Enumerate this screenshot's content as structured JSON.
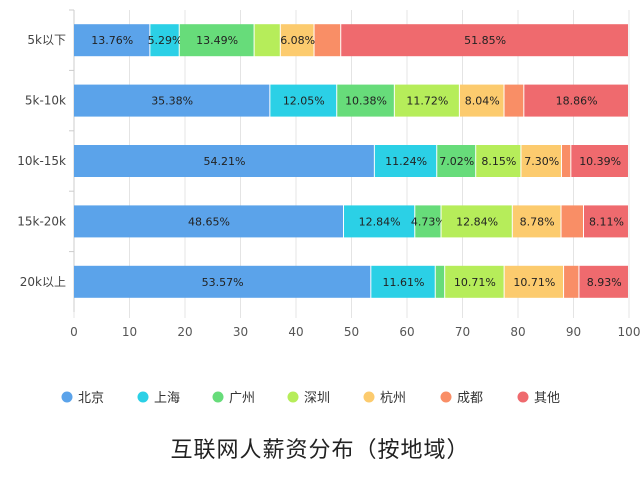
{
  "chart_data": {
    "type": "bar",
    "orientation": "horizontal",
    "stacked": true,
    "title": "互联网人薪资分布（按地域）",
    "categories": [
      "5k以下",
      "5k-10k",
      "10k-15k",
      "15k-20k",
      "20k以上"
    ],
    "xlim": [
      0,
      100
    ],
    "xticks": [
      0,
      10,
      20,
      30,
      40,
      50,
      60,
      70,
      80,
      90,
      100
    ],
    "grid": true,
    "legend_position": "bottom",
    "series": [
      {
        "name": "北京",
        "color": "#5ba3ea",
        "values": [
          13.76,
          35.38,
          54.21,
          48.65,
          53.57
        ],
        "labels": [
          "13.76%",
          "35.38%",
          "54.21%",
          "48.65%",
          "53.57%"
        ]
      },
      {
        "name": "上海",
        "color": "#2bd0e6",
        "values": [
          5.29,
          12.05,
          11.24,
          12.84,
          11.61
        ],
        "labels": [
          "5.29%",
          "12.05%",
          "11.24%",
          "12.84%",
          "11.61%"
        ]
      },
      {
        "name": "广州",
        "color": "#67dc7a",
        "values": [
          13.49,
          10.38,
          7.02,
          4.73,
          1.7
        ],
        "labels": [
          "13.49%",
          "10.38%",
          "7.02%",
          "4.73%",
          ""
        ]
      },
      {
        "name": "深圳",
        "color": "#b6ed5a",
        "values": [
          4.72,
          11.72,
          8.15,
          12.84,
          10.71
        ],
        "labels": [
          "",
          "11.72%",
          "8.15%",
          "12.84%",
          "10.71%"
        ]
      },
      {
        "name": "杭州",
        "color": "#fccb6e",
        "values": [
          6.08,
          8.04,
          7.3,
          8.78,
          10.71
        ],
        "labels": [
          "6.08%",
          "8.04%",
          "7.30%",
          "8.78%",
          "10.71%"
        ]
      },
      {
        "name": "成都",
        "color": "#f98e66",
        "values": [
          4.81,
          3.57,
          1.69,
          4.05,
          2.77
        ],
        "labels": [
          "",
          "",
          "",
          "",
          ""
        ]
      },
      {
        "name": "其他",
        "color": "#ef6a6e",
        "values": [
          51.85,
          18.86,
          10.39,
          8.11,
          8.93
        ],
        "labels": [
          "51.85%",
          "18.86%",
          "10.39%",
          "8.11%",
          "8.93%"
        ]
      }
    ]
  }
}
